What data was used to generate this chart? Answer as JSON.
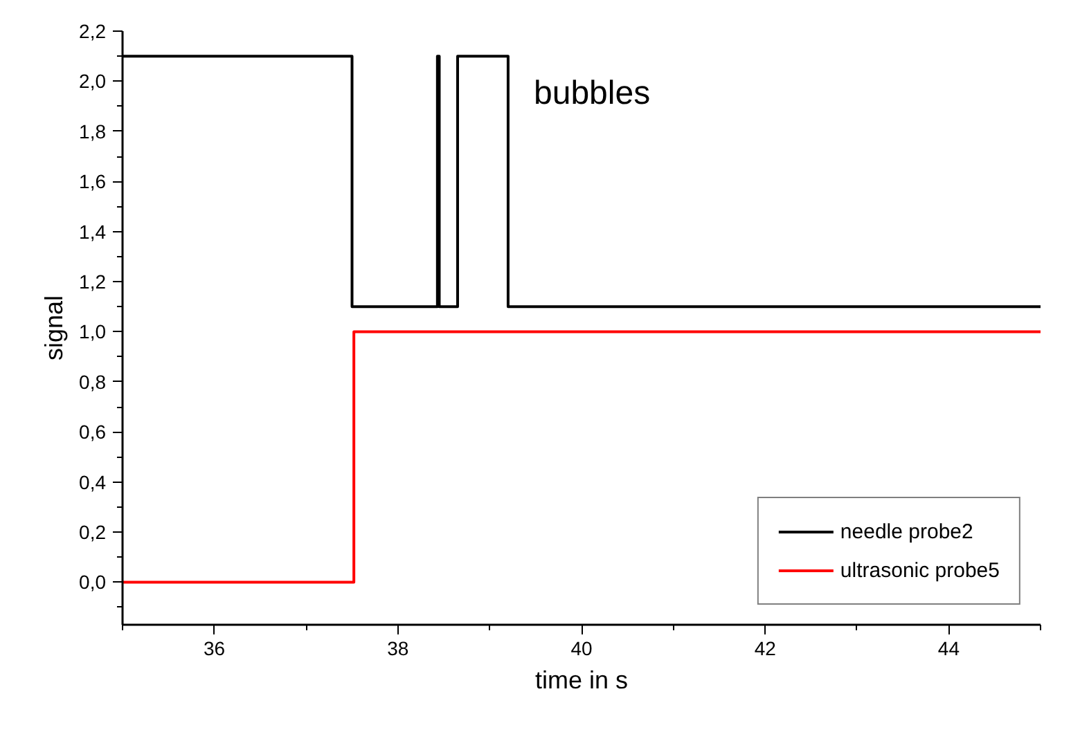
{
  "chart_data": {
    "type": "step",
    "xlabel": "time in s",
    "ylabel": "signal",
    "xlim": [
      35,
      45
    ],
    "xticks": [
      36,
      38,
      40,
      42,
      44
    ],
    "ylim": [
      -0.17,
      2.2
    ],
    "yticks": [
      {
        "value": 0,
        "label": "0,0"
      },
      {
        "value": 0.2,
        "label": "0,2"
      },
      {
        "value": 0.4,
        "label": "0,4"
      },
      {
        "value": 0.6,
        "label": "0,6"
      },
      {
        "value": 0.8,
        "label": "0,8"
      },
      {
        "value": 1.0,
        "label": "1,0"
      },
      {
        "value": 1.2,
        "label": "1,2"
      },
      {
        "value": 1.4,
        "label": "1,4"
      },
      {
        "value": 1.6,
        "label": "1,6"
      },
      {
        "value": 1.8,
        "label": "1,8"
      },
      {
        "value": 2.0,
        "label": "2,0"
      },
      {
        "value": 2.2,
        "label": "2,2"
      }
    ],
    "series": [
      {
        "name": "needle probe2",
        "color": "#000000",
        "x": [
          35,
          37.5,
          38.43,
          38.45,
          38.65,
          39.2,
          45
        ],
        "values": [
          2.1,
          1.1,
          2.1,
          1.1,
          2.1,
          1.1,
          1.1
        ]
      },
      {
        "name": "ultrasonic probe5",
        "color": "#ff0000",
        "x": [
          35,
          37.52,
          45
        ],
        "values": [
          0,
          1,
          1
        ]
      }
    ],
    "annotations": [
      "bubbles"
    ],
    "legend": "bottom right",
    "grid": false
  }
}
